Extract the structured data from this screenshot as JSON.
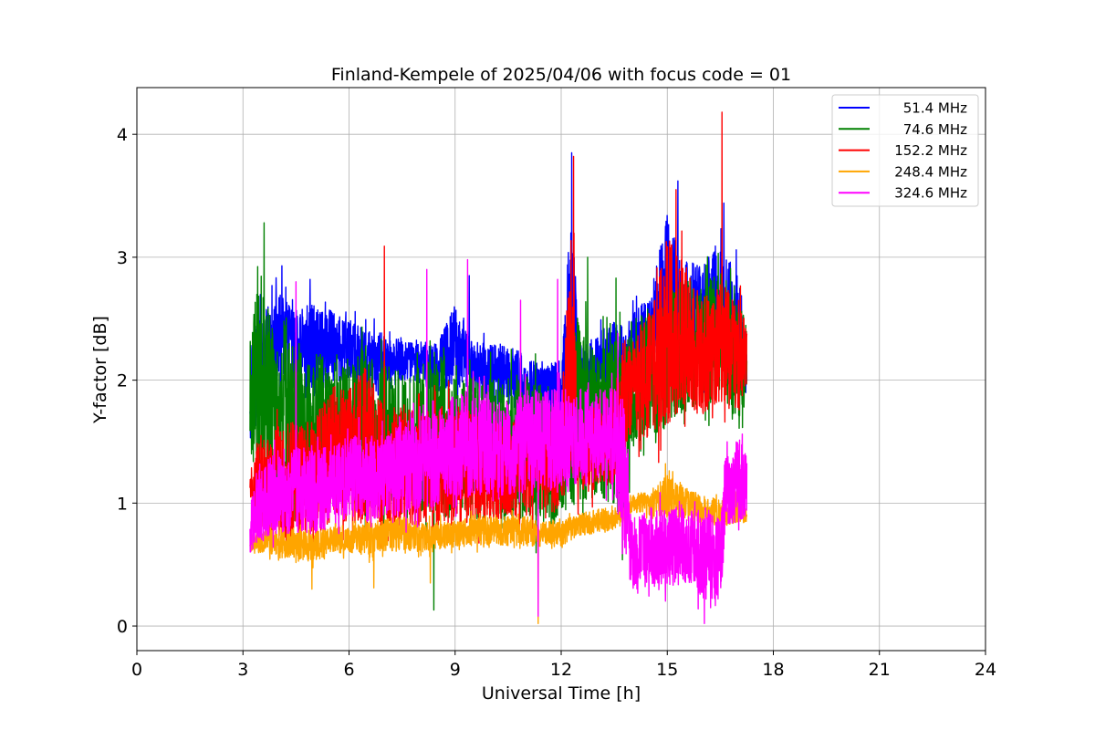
{
  "chart_data": {
    "type": "line",
    "title": "Finland-Kempele of 2025/04/06 with focus code = 01",
    "xlabel": "Universal Time [h]",
    "ylabel": "Y-factor [dB]",
    "xlim": [
      0,
      24
    ],
    "ylim": [
      -0.2,
      4.38
    ],
    "xticks": [
      0,
      3,
      6,
      9,
      12,
      15,
      18,
      21,
      24
    ],
    "yticks": [
      0,
      1,
      2,
      3,
      4
    ],
    "grid": true,
    "legend_position": "top-right",
    "series": [
      {
        "name": " 51.4 MHz",
        "color": "#0000ff",
        "x": [
          3.2,
          3.5,
          4.0,
          4.5,
          5.0,
          5.5,
          6.0,
          6.5,
          7.0,
          7.5,
          8.0,
          8.5,
          9.0,
          9.5,
          10.0,
          10.5,
          11.0,
          11.5,
          12.0,
          12.3,
          12.5,
          13.0,
          13.5,
          13.8,
          14.0,
          14.5,
          15.0,
          15.5,
          16.0,
          16.5,
          17.0,
          17.25
        ],
        "y_low": [
          1.3,
          1.5,
          1.7,
          1.8,
          1.7,
          1.8,
          1.9,
          1.8,
          1.8,
          1.9,
          1.9,
          1.8,
          1.8,
          1.8,
          1.7,
          1.7,
          1.6,
          1.6,
          1.5,
          1.5,
          1.6,
          1.7,
          1.8,
          1.6,
          1.9,
          2.0,
          1.9,
          1.9,
          1.9,
          1.8,
          1.8,
          1.9
        ],
        "y_high": [
          2.6,
          2.7,
          2.9,
          2.7,
          2.8,
          2.7,
          2.6,
          2.5,
          2.5,
          2.4,
          2.4,
          2.4,
          2.8,
          2.4,
          2.4,
          2.4,
          2.3,
          2.2,
          2.3,
          3.85,
          2.4,
          2.5,
          2.6,
          2.6,
          2.7,
          2.8,
          3.6,
          3.2,
          3.1,
          3.4,
          3.05,
          2.4
        ],
        "spikes": [
          [
            4.1,
            2.93
          ],
          [
            4.9,
            2.82
          ],
          [
            9.4,
            2.85
          ],
          [
            12.3,
            3.85
          ],
          [
            15.3,
            3.62
          ],
          [
            16.6,
            3.44
          ],
          [
            16.95,
            3.06
          ]
        ]
      },
      {
        "name": " 74.6 MHz",
        "color": "#008000",
        "x": [
          3.2,
          3.5,
          4.0,
          4.5,
          5.0,
          5.5,
          6.0,
          6.5,
          7.0,
          7.5,
          8.0,
          8.5,
          9.0,
          9.5,
          10.0,
          10.5,
          11.0,
          11.5,
          12.0,
          12.5,
          13.0,
          13.5,
          13.8,
          14.0,
          14.5,
          15.0,
          15.5,
          16.0,
          16.5,
          17.0,
          17.25
        ],
        "y_low": [
          1.1,
          1.0,
          0.9,
          0.85,
          0.8,
          0.8,
          0.75,
          0.7,
          0.7,
          0.65,
          0.65,
          0.6,
          0.6,
          0.55,
          0.6,
          0.6,
          0.6,
          0.55,
          0.6,
          0.6,
          0.8,
          0.7,
          0.35,
          1.2,
          1.3,
          1.4,
          1.5,
          1.6,
          1.6,
          1.5,
          1.6
        ],
        "y_high": [
          2.6,
          3.28,
          2.5,
          2.6,
          2.5,
          2.4,
          2.4,
          2.6,
          2.4,
          2.3,
          2.3,
          2.6,
          2.3,
          2.3,
          2.3,
          2.3,
          2.3,
          2.2,
          2.2,
          3.0,
          2.5,
          2.6,
          2.7,
          2.8,
          2.8,
          2.9,
          3.1,
          3.0,
          3.1,
          2.8,
          2.7
        ],
        "spikes": [
          [
            3.6,
            3.28
          ],
          [
            8.4,
            0.13
          ],
          [
            12.75,
            3.0
          ],
          [
            13.55,
            2.83
          ]
        ]
      },
      {
        "name": "152.2 MHz",
        "color": "#ff0000",
        "x": [
          3.2,
          3.5,
          4.0,
          4.5,
          5.0,
          5.5,
          6.0,
          6.5,
          7.0,
          7.5,
          8.0,
          8.5,
          9.0,
          9.5,
          10.0,
          10.5,
          11.0,
          11.5,
          12.0,
          12.3,
          12.5,
          13.0,
          13.5,
          13.8,
          14.0,
          14.5,
          15.0,
          15.5,
          16.0,
          16.5,
          17.0,
          17.25
        ],
        "y_low": [
          1.0,
          0.6,
          0.5,
          0.45,
          0.4,
          0.6,
          0.6,
          0.55,
          0.6,
          0.6,
          0.6,
          0.6,
          0.6,
          0.65,
          0.65,
          0.7,
          0.7,
          0.75,
          0.75,
          0.8,
          0.9,
          0.95,
          1.0,
          1.1,
          1.4,
          1.3,
          1.3,
          1.5,
          1.5,
          1.6,
          1.5,
          1.8
        ],
        "y_high": [
          1.3,
          1.7,
          1.8,
          1.9,
          1.9,
          2.2,
          2.2,
          2.4,
          2.0,
          2.0,
          2.0,
          2.0,
          2.0,
          2.0,
          1.9,
          1.9,
          1.9,
          1.9,
          1.9,
          3.8,
          1.9,
          2.0,
          2.1,
          2.6,
          2.5,
          2.8,
          3.5,
          3.2,
          2.9,
          3.0,
          2.9,
          2.5
        ],
        "spikes": [
          [
            7.0,
            3.09
          ],
          [
            12.35,
            3.82
          ],
          [
            15.25,
            3.55
          ],
          [
            16.55,
            4.18
          ]
        ]
      },
      {
        "name": "248.4 MHz",
        "color": "#ffa500",
        "x": [
          3.2,
          3.5,
          4.0,
          4.5,
          5.0,
          5.5,
          6.0,
          6.5,
          7.0,
          7.5,
          8.0,
          8.5,
          9.0,
          9.5,
          10.0,
          10.5,
          11.0,
          11.5,
          12.0,
          12.5,
          13.0,
          13.5,
          13.8,
          14.0,
          14.5,
          15.0,
          15.5,
          16.0,
          16.5,
          17.0,
          17.25
        ],
        "y_low": [
          0.55,
          0.55,
          0.5,
          0.5,
          0.45,
          0.55,
          0.55,
          0.5,
          0.55,
          0.55,
          0.55,
          0.55,
          0.6,
          0.6,
          0.6,
          0.6,
          0.6,
          0.6,
          0.6,
          0.7,
          0.7,
          0.75,
          0.8,
          0.9,
          0.85,
          0.8,
          0.8,
          0.8,
          0.75,
          0.8,
          0.8
        ],
        "y_high": [
          0.8,
          0.85,
          0.85,
          0.85,
          0.85,
          0.85,
          0.85,
          0.9,
          0.95,
          0.95,
          0.9,
          0.9,
          0.9,
          0.95,
          0.95,
          0.95,
          0.95,
          0.9,
          0.9,
          0.95,
          1.0,
          1.0,
          1.0,
          1.1,
          1.15,
          1.3,
          1.2,
          1.1,
          1.1,
          1.1,
          1.0
        ],
        "spikes": [
          [
            4.95,
            0.3
          ],
          [
            6.7,
            0.31
          ],
          [
            8.3,
            0.35
          ],
          [
            11.35,
            0.02
          ],
          [
            14.95,
            1.32
          ]
        ]
      },
      {
        "name": "324.6 MHz",
        "color": "#ff00ff",
        "x": [
          3.2,
          3.5,
          4.0,
          4.5,
          5.0,
          5.5,
          6.0,
          6.5,
          7.0,
          7.5,
          8.0,
          8.5,
          9.0,
          9.5,
          10.0,
          10.5,
          11.0,
          11.5,
          12.0,
          12.5,
          13.0,
          13.5,
          13.8,
          14.0,
          14.5,
          15.0,
          15.5,
          16.0,
          16.5,
          16.65,
          16.8,
          17.0,
          17.25
        ],
        "y_low": [
          0.5,
          0.55,
          0.6,
          0.6,
          0.6,
          0.65,
          0.7,
          0.7,
          0.75,
          0.75,
          0.8,
          0.8,
          0.85,
          0.85,
          0.9,
          0.9,
          0.9,
          0.9,
          0.95,
          0.95,
          1.0,
          1.0,
          0.3,
          0.15,
          0.2,
          0.2,
          0.15,
          0.05,
          0.05,
          0.6,
          0.7,
          0.7,
          0.75
        ],
        "y_high": [
          1.1,
          1.5,
          1.6,
          1.6,
          1.6,
          1.6,
          1.7,
          1.7,
          1.7,
          1.8,
          1.9,
          1.9,
          2.1,
          2.1,
          2.0,
          2.0,
          2.1,
          2.1,
          2.1,
          2.1,
          2.1,
          2.1,
          2.2,
          1.0,
          1.1,
          1.1,
          1.2,
          1.2,
          1.0,
          1.6,
          1.45,
          1.7,
          1.5
        ],
        "spikes": [
          [
            4.5,
            2.8
          ],
          [
            8.2,
            2.9
          ],
          [
            9.35,
            2.98
          ],
          [
            10.85,
            2.65
          ],
          [
            11.9,
            2.82
          ],
          [
            13.6,
            2.38
          ],
          [
            11.35,
            0.08
          ],
          [
            16.05,
            0.02
          ]
        ]
      }
    ]
  }
}
